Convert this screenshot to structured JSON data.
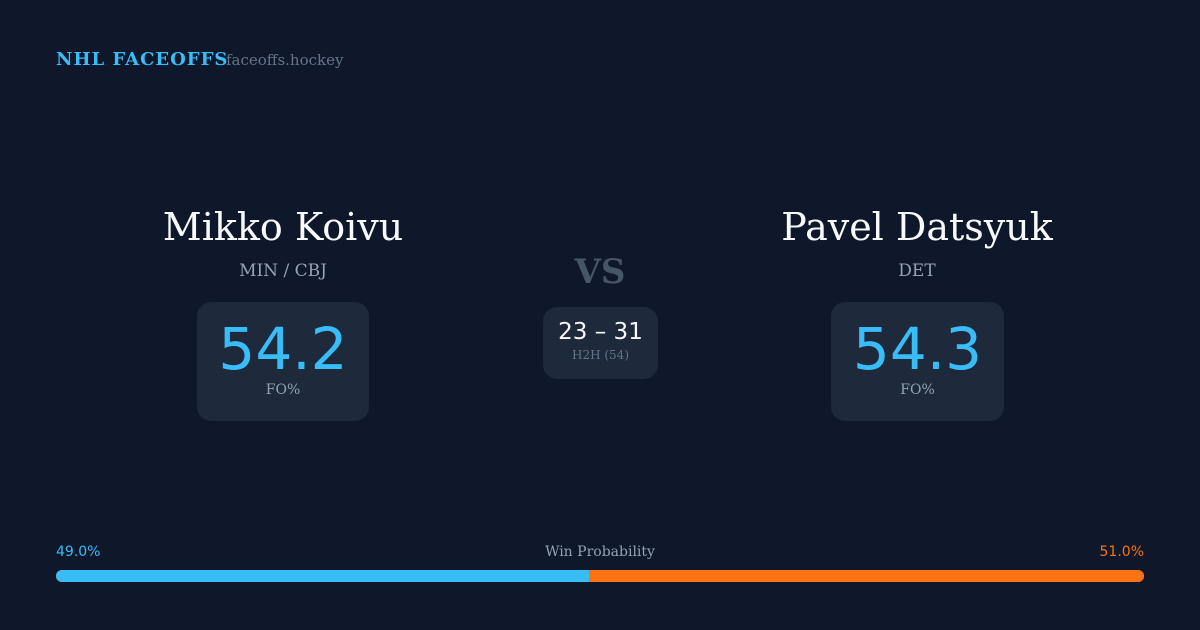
{
  "header": {
    "brand": "NHL FACEOFFS",
    "site": "faceoffs.hockey"
  },
  "left": {
    "name": "Mikko Koivu",
    "team": "MIN / CBJ",
    "fo_pct": "54.2",
    "fo_label": "FO%"
  },
  "right": {
    "name": "Pavel Datsyuk",
    "team": "DET",
    "fo_pct": "54.3",
    "fo_label": "FO%"
  },
  "vs": "VS",
  "h2h": {
    "score": "23 – 31",
    "label": "H2H (54)"
  },
  "win_probability": {
    "label": "Win Probability",
    "left_pct": "49.0%",
    "right_pct": "51.0%",
    "left_value": 49.0,
    "right_value": 51.0,
    "left_color": "#38bdf8",
    "right_color": "#f97316"
  }
}
